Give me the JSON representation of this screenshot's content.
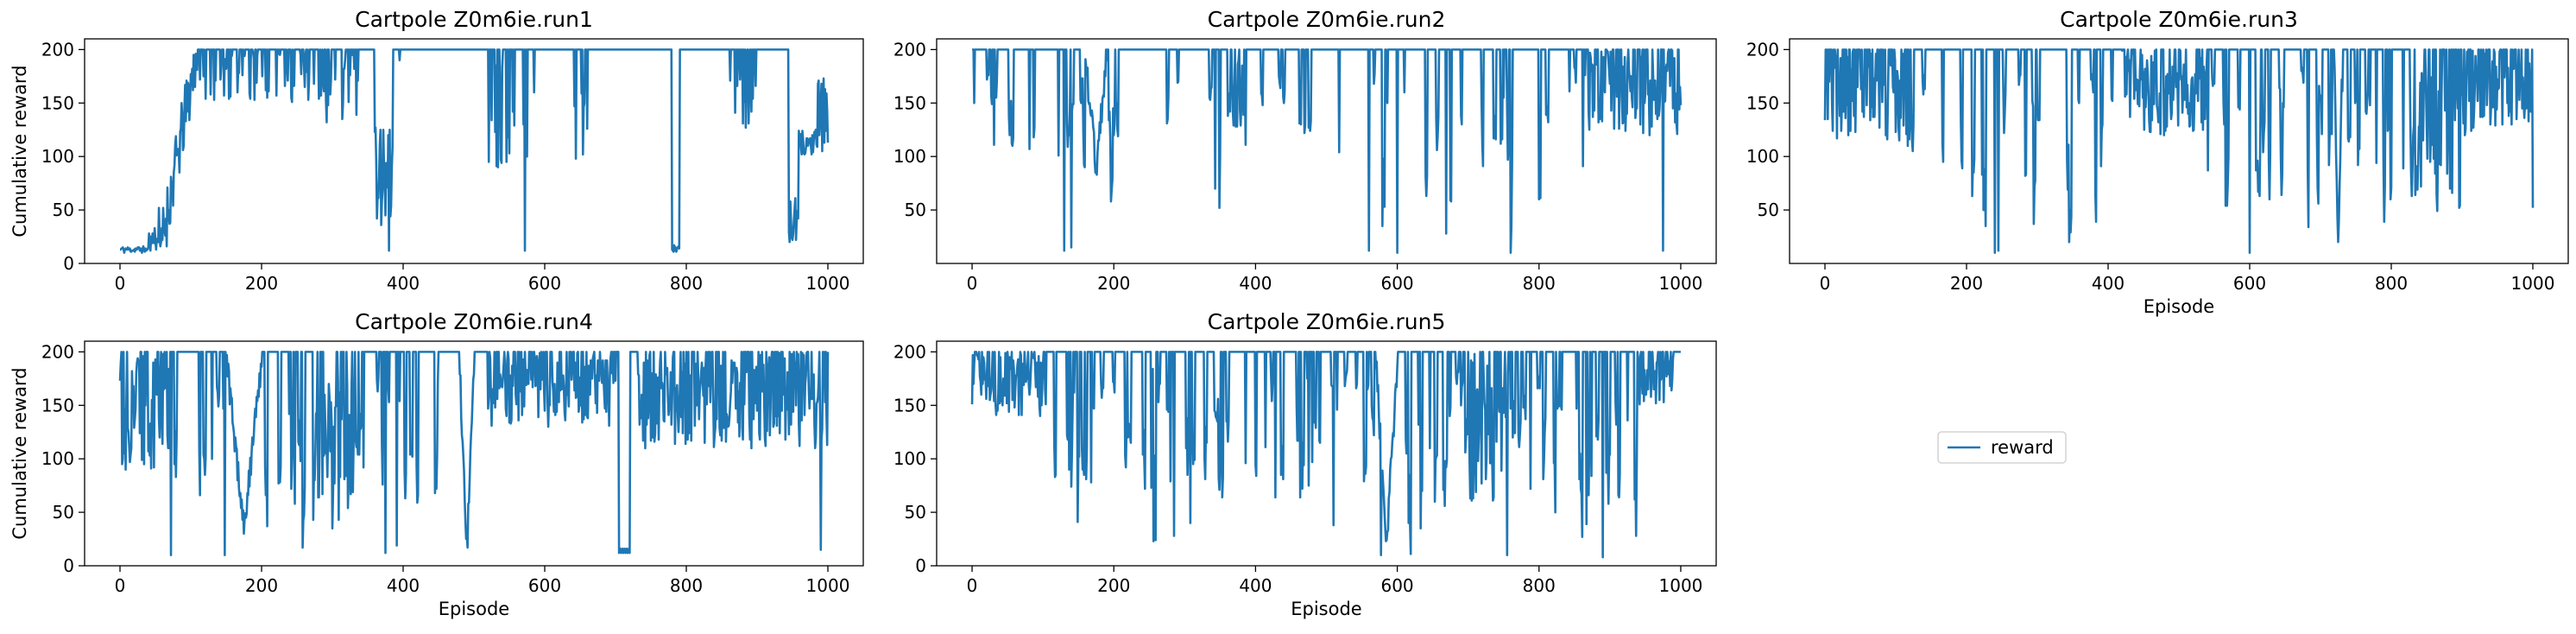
{
  "chart_data": [
    {
      "type": "line",
      "title": "Cartpole Z0m6ie.run1",
      "xlabel": "",
      "ylabel": "Cumulative reward",
      "xlim": [
        -50,
        1050
      ],
      "ylim": [
        0,
        210
      ],
      "xticks": [
        "0",
        "200",
        "400",
        "600",
        "800",
        "1000"
      ],
      "yticks": [
        "0",
        "50",
        "100",
        "150",
        "200"
      ],
      "series": [
        {
          "name": "reward",
          "x_step": 1,
          "values": []
        }
      ]
    },
    {
      "type": "line",
      "title": "Cartpole Z0m6ie.run2",
      "xlabel": "",
      "ylabel": "",
      "xlim": [
        -50,
        1050
      ],
      "ylim": [
        0,
        210
      ],
      "xticks": [
        "0",
        "200",
        "400",
        "600",
        "800",
        "1000"
      ],
      "yticks": [
        "50",
        "100",
        "150",
        "200"
      ],
      "series": [
        {
          "name": "reward",
          "x_step": 1,
          "values": []
        }
      ]
    },
    {
      "type": "line",
      "title": "Cartpole Z0m6ie.run3",
      "xlabel": "Episode",
      "ylabel": "",
      "xlim": [
        -50,
        1050
      ],
      "ylim": [
        0,
        210
      ],
      "xticks": [
        "0",
        "200",
        "400",
        "600",
        "800",
        "1000"
      ],
      "yticks": [
        "50",
        "100",
        "150",
        "200"
      ],
      "series": [
        {
          "name": "reward",
          "x_step": 1,
          "values": []
        }
      ]
    },
    {
      "type": "line",
      "title": "Cartpole Z0m6ie.run4",
      "xlabel": "Episode",
      "ylabel": "Cumulative reward",
      "xlim": [
        -50,
        1050
      ],
      "ylim": [
        0,
        210
      ],
      "xticks": [
        "0",
        "200",
        "400",
        "600",
        "800",
        "1000"
      ],
      "yticks": [
        "0",
        "50",
        "100",
        "150",
        "200"
      ],
      "series": [
        {
          "name": "reward",
          "x_step": 1,
          "values": []
        }
      ]
    },
    {
      "type": "line",
      "title": "Cartpole Z0m6ie.run5",
      "xlabel": "Episode",
      "ylabel": "",
      "xlim": [
        -50,
        1050
      ],
      "ylim": [
        0,
        210
      ],
      "xticks": [
        "0",
        "200",
        "400",
        "600",
        "800",
        "1000"
      ],
      "yticks": [
        "0",
        "50",
        "100",
        "150",
        "200"
      ],
      "series": [
        {
          "name": "reward",
          "x_step": 1,
          "values": []
        }
      ]
    }
  ],
  "legend": {
    "label": "reward",
    "placement": "center-right"
  },
  "colors": {
    "line": "#1f77b4"
  }
}
